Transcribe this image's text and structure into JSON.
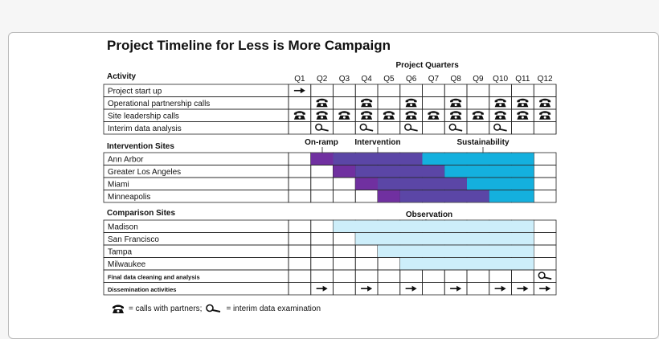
{
  "title": "Project Timeline for Less is More Campaign",
  "header": {
    "activity": "Activity",
    "project_quarters": "Project Quarters",
    "quarters": [
      "Q1",
      "Q2",
      "Q3",
      "Q4",
      "Q5",
      "Q6",
      "Q7",
      "Q8",
      "Q9",
      "Q10",
      "Q11",
      "Q12"
    ]
  },
  "activities": [
    {
      "label": "Project start up",
      "marks": [
        {
          "q": 1,
          "icon": "arrow"
        }
      ]
    },
    {
      "label": "Operational partnership calls",
      "marks": [
        {
          "q": 2,
          "icon": "phone"
        },
        {
          "q": 4,
          "icon": "phone"
        },
        {
          "q": 6,
          "icon": "phone"
        },
        {
          "q": 8,
          "icon": "phone"
        },
        {
          "q": 10,
          "icon": "phone"
        },
        {
          "q": 11,
          "icon": "phone"
        },
        {
          "q": 12,
          "icon": "phone"
        }
      ]
    },
    {
      "label": "Site leadership calls",
      "marks": [
        {
          "q": 1,
          "icon": "phone"
        },
        {
          "q": 2,
          "icon": "phone"
        },
        {
          "q": 3,
          "icon": "phone"
        },
        {
          "q": 4,
          "icon": "phone"
        },
        {
          "q": 5,
          "icon": "phone"
        },
        {
          "q": 6,
          "icon": "phone"
        },
        {
          "q": 7,
          "icon": "phone"
        },
        {
          "q": 8,
          "icon": "phone"
        },
        {
          "q": 9,
          "icon": "phone"
        },
        {
          "q": 10,
          "icon": "phone"
        },
        {
          "q": 11,
          "icon": "phone"
        },
        {
          "q": 12,
          "icon": "phone"
        }
      ]
    },
    {
      "label": "Interim data analysis",
      "marks": [
        {
          "q": 2,
          "icon": "magnifier"
        },
        {
          "q": 4,
          "icon": "magnifier"
        },
        {
          "q": 6,
          "icon": "magnifier"
        },
        {
          "q": 8,
          "icon": "magnifier"
        },
        {
          "q": 10,
          "icon": "magnifier"
        }
      ]
    }
  ],
  "intervention": {
    "heading": "Intervention Sites",
    "phase_labels": [
      {
        "text": "On-ramp",
        "color": "#7030a0"
      },
      {
        "text": "Intervention",
        "color": "#5b3fa8"
      },
      {
        "text": "Sustainability",
        "color": "#1fa7d8"
      }
    ],
    "colors": {
      "onramp": "#7030a0",
      "intervention": "#5b46a6",
      "sustainability": "#14b0de"
    },
    "sites": [
      {
        "label": "Ann Arbor",
        "start_q": 2,
        "intervention_start_q": 3,
        "sustainability_start_q": 7,
        "end_q": 11
      },
      {
        "label": "Greater Los Angeles",
        "start_q": 3,
        "intervention_start_q": 4,
        "sustainability_start_q": 8,
        "end_q": 11
      },
      {
        "label": "Miami",
        "start_q": 4,
        "intervention_start_q": 5,
        "sustainability_start_q": 9,
        "end_q": 11
      },
      {
        "label": "Minneapolis",
        "start_q": 5,
        "intervention_start_q": 6,
        "sustainability_start_q": 10,
        "end_q": 11
      }
    ]
  },
  "comparison": {
    "heading": "Comparison Sites",
    "observation_label": "Observation",
    "color": "#cdeefa",
    "sites": [
      {
        "label": "Madison",
        "start_q": 3,
        "end_q": 11
      },
      {
        "label": "San Francisco",
        "start_q": 4,
        "end_q": 11
      },
      {
        "label": "Tampa",
        "start_q": 5,
        "end_q": 11
      },
      {
        "label": "Milwaukee",
        "start_q": 6,
        "end_q": 11
      }
    ]
  },
  "final_rows": [
    {
      "label": "Final data cleaning and analysis",
      "marks": [
        {
          "q": 12,
          "icon": "magnifier"
        }
      ]
    },
    {
      "label": "Dissemination activities",
      "marks": [
        {
          "q": 2,
          "icon": "arrow"
        },
        {
          "q": 4,
          "icon": "arrow"
        },
        {
          "q": 6,
          "icon": "arrow"
        },
        {
          "q": 8,
          "icon": "arrow"
        },
        {
          "q": 10,
          "icon": "arrow"
        },
        {
          "q": 11,
          "icon": "arrow"
        },
        {
          "q": 12,
          "icon": "arrow"
        }
      ]
    }
  ],
  "legend": {
    "phone_text": "= calls with partners;",
    "magnifier_text": "= interim data examination"
  }
}
